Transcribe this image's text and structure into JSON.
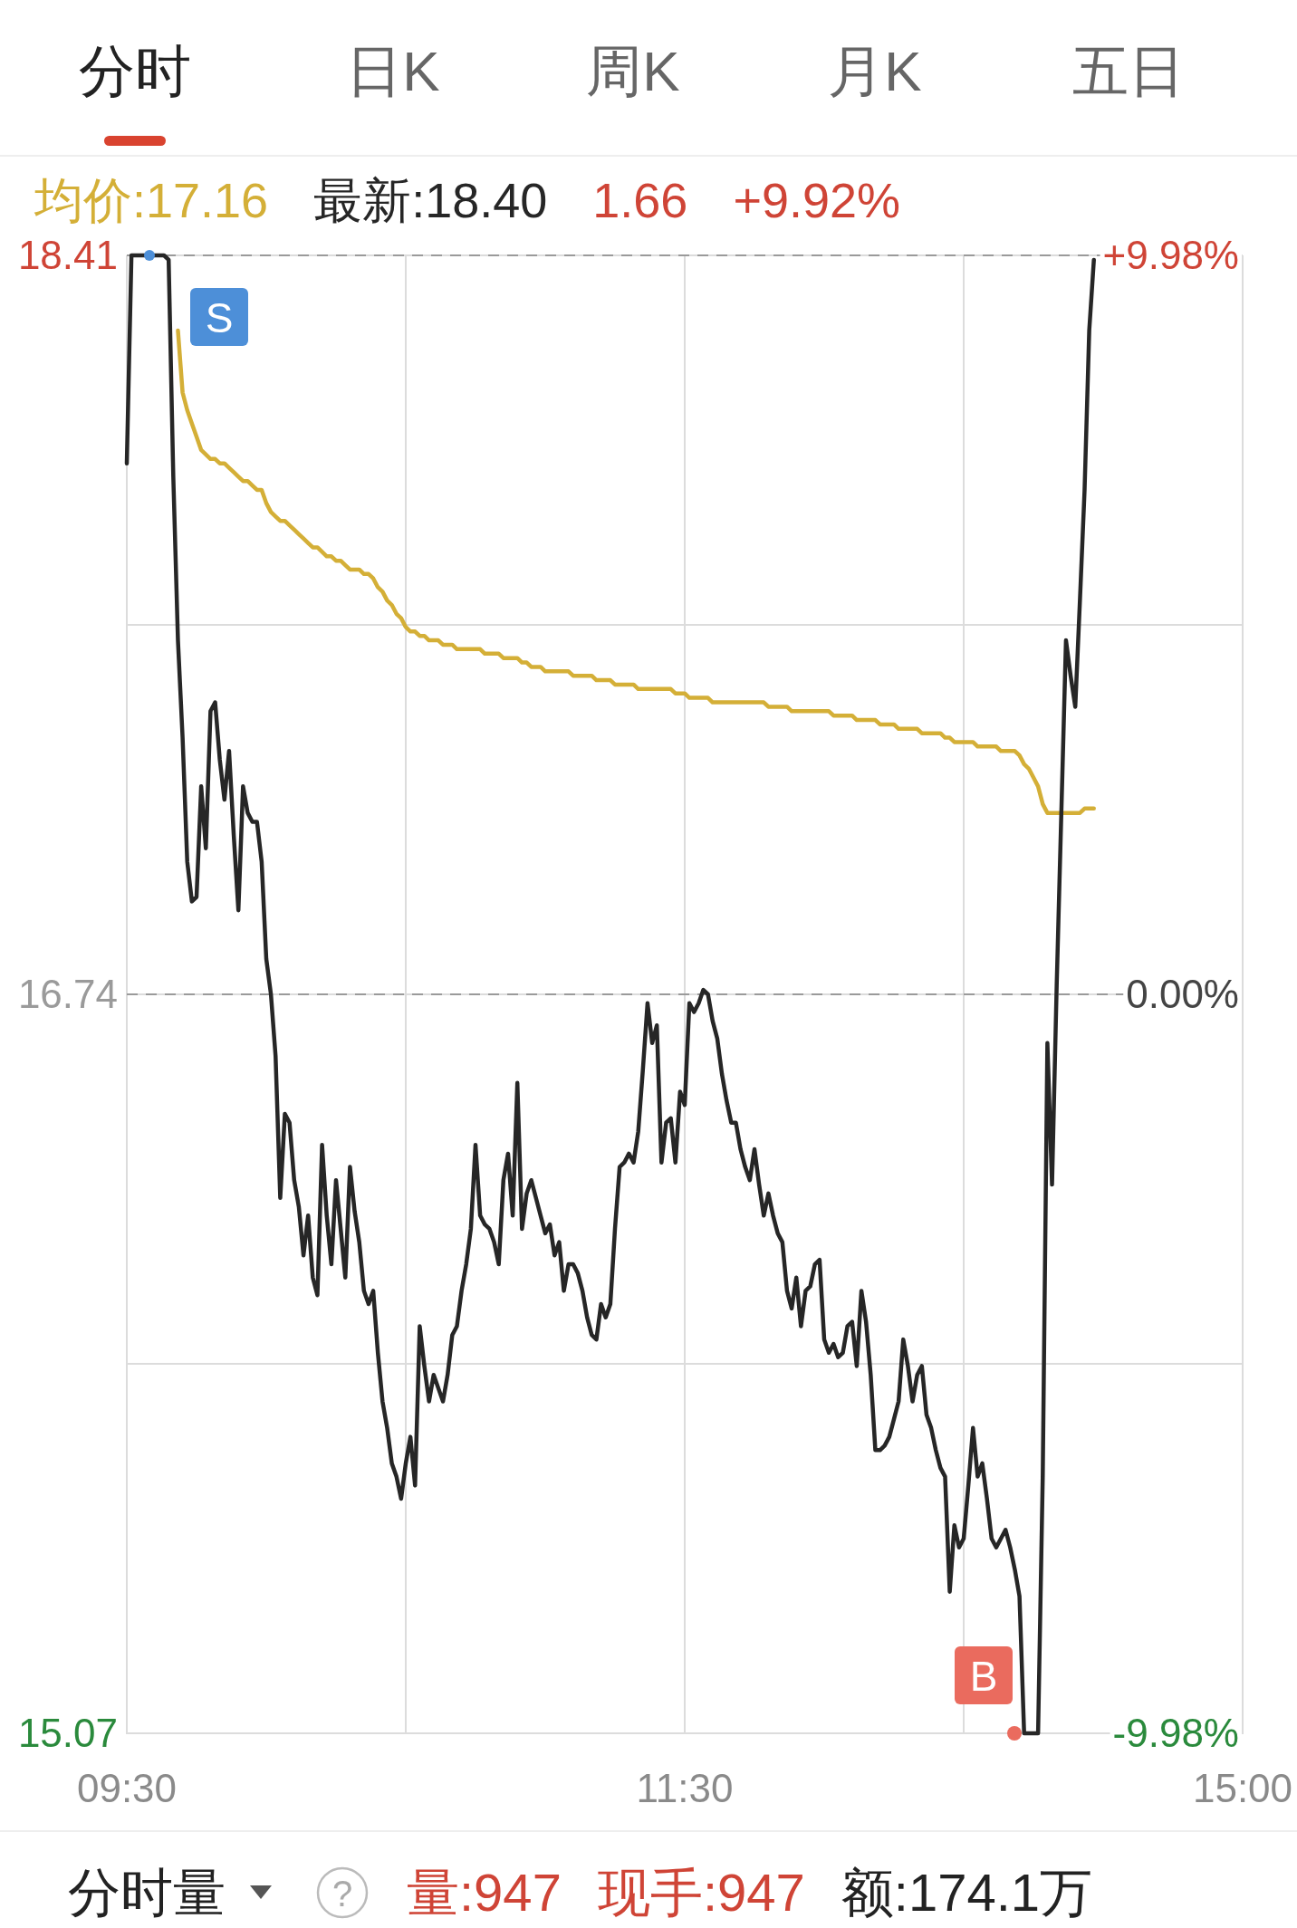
{
  "chart_data": {
    "type": "line",
    "categories": [
      "09:30",
      null,
      null,
      null,
      null,
      null,
      null,
      null,
      null,
      null,
      null,
      null,
      null,
      null,
      null,
      null,
      null,
      null,
      null,
      null,
      null,
      null,
      null,
      null,
      null,
      null,
      null,
      null,
      null,
      null,
      null,
      null,
      null,
      null,
      null,
      null,
      null,
      null,
      null,
      null,
      null,
      null,
      null,
      null,
      null,
      null,
      null,
      null,
      null,
      null,
      null,
      null,
      null,
      null,
      null,
      null,
      null,
      null,
      null,
      null,
      null,
      null,
      null,
      null,
      null,
      null,
      null,
      null,
      null,
      null,
      null,
      null,
      null,
      null,
      null,
      null,
      null,
      null,
      null,
      null,
      null,
      null,
      null,
      null,
      null,
      null,
      null,
      null,
      null,
      null,
      null,
      null,
      null,
      null,
      null,
      null,
      null,
      null,
      null,
      null,
      null,
      null,
      null,
      null,
      null,
      null,
      null,
      null,
      null,
      null,
      null,
      null,
      null,
      null,
      null,
      null,
      null,
      null,
      null,
      null,
      "11:30",
      null,
      null,
      null,
      null,
      null,
      null,
      null,
      null,
      null,
      null,
      null,
      null,
      null,
      null,
      null,
      null,
      null,
      null,
      null,
      null,
      null,
      null,
      null,
      null,
      null,
      null,
      null,
      null,
      null,
      null,
      null,
      null,
      null,
      null,
      null,
      null,
      null,
      null,
      null,
      null,
      null,
      null,
      null,
      null,
      null,
      null,
      null,
      null,
      null,
      null,
      null,
      null,
      null,
      null,
      null,
      null,
      null,
      null,
      null,
      null,
      null,
      null,
      null,
      null,
      null,
      null,
      null,
      null,
      null,
      null,
      null,
      null,
      null,
      null,
      null,
      null,
      null,
      null,
      null,
      null,
      null,
      null,
      null,
      null,
      null,
      null,
      null,
      null,
      null,
      null,
      null,
      null,
      null,
      null,
      null,
      null,
      null,
      null,
      null,
      null,
      null,
      null,
      null,
      null,
      null,
      null,
      null,
      null,
      null,
      null,
      null,
      null,
      null,
      null,
      null,
      null,
      null,
      null,
      null,
      "15:00"
    ],
    "ylim": [
      15.07,
      18.41
    ],
    "yticks": [
      15.07,
      {
        "value": 15.905,
        "label": null
      },
      16.74,
      {
        "value": 17.575,
        "label": null
      },
      18.41
    ],
    "y2lim": [
      -9.98,
      9.98
    ],
    "y2ticks": [
      {
        "value": -9.98,
        "label": "-9.98%"
      },
      {
        "value": 0,
        "label": "0.00%"
      },
      {
        "value": 9.98,
        "label": "+9.98%"
      }
    ],
    "grid": true,
    "legend": "top",
    "line_style": "solid",
    "ref_lines": [
      {
        "axis": "y",
        "value": 16.74,
        "line_style": "dashed"
      },
      {
        "axis": "y",
        "value": 18.41,
        "line_style": "dashed"
      }
    ],
    "series": [
      {
        "name": "均价:17.16",
        "color": "#d4af37",
        "values": [
          null,
          null,
          null,
          null,
          null,
          null,
          null,
          null,
          null,
          null,
          null,
          18.24,
          18.1,
          18.06,
          18.03,
          18.0,
          17.97,
          17.96,
          17.95,
          17.95,
          17.94,
          17.94,
          17.93,
          17.92,
          17.91,
          17.9,
          17.9,
          17.89,
          17.88,
          17.88,
          17.85,
          17.83,
          17.82,
          17.81,
          17.81,
          17.8,
          17.79,
          17.78,
          17.77,
          17.76,
          17.75,
          17.75,
          17.74,
          17.73,
          17.73,
          17.72,
          17.72,
          17.71,
          17.7,
          17.7,
          17.7,
          17.69,
          17.69,
          17.68,
          17.66,
          17.65,
          17.63,
          17.62,
          17.6,
          17.59,
          17.57,
          17.56,
          17.56,
          17.55,
          17.55,
          17.54,
          17.54,
          17.54,
          17.53,
          17.53,
          17.53,
          17.52,
          17.52,
          17.52,
          17.52,
          17.52,
          17.52,
          17.51,
          17.51,
          17.51,
          17.51,
          17.5,
          17.5,
          17.5,
          17.5,
          17.49,
          17.49,
          17.48,
          17.48,
          17.48,
          17.47,
          17.47,
          17.47,
          17.47,
          17.47,
          17.47,
          17.46,
          17.46,
          17.46,
          17.46,
          17.46,
          17.45,
          17.45,
          17.45,
          17.45,
          17.44,
          17.44,
          17.44,
          17.44,
          17.44,
          17.43,
          17.43,
          17.43,
          17.43,
          17.43,
          17.43,
          17.43,
          17.43,
          17.42,
          17.42,
          17.42,
          17.41,
          17.41,
          17.41,
          17.41,
          17.41,
          17.4,
          17.4,
          17.4,
          17.4,
          17.4,
          17.4,
          17.4,
          17.4,
          17.4,
          17.4,
          17.4,
          17.4,
          17.39,
          17.39,
          17.39,
          17.39,
          17.39,
          17.38,
          17.38,
          17.38,
          17.38,
          17.38,
          17.38,
          17.38,
          17.38,
          17.38,
          17.37,
          17.37,
          17.37,
          17.37,
          17.37,
          17.36,
          17.36,
          17.36,
          17.36,
          17.36,
          17.35,
          17.35,
          17.35,
          17.35,
          17.34,
          17.34,
          17.34,
          17.34,
          17.34,
          17.33,
          17.33,
          17.33,
          17.33,
          17.33,
          17.32,
          17.32,
          17.31,
          17.31,
          17.31,
          17.31,
          17.31,
          17.3,
          17.3,
          17.3,
          17.3,
          17.3,
          17.29,
          17.29,
          17.29,
          17.29,
          17.28,
          17.26,
          17.25,
          17.23,
          17.21,
          17.17,
          17.15,
          17.15,
          17.15,
          17.15,
          17.15,
          17.15,
          17.15,
          17.15,
          17.16,
          17.16,
          17.16,
          null,
          null,
          null,
          null,
          null,
          null,
          null,
          null,
          null,
          null,
          null,
          null,
          null,
          null,
          null,
          null,
          null,
          null,
          null,
          null,
          null,
          null,
          null,
          null,
          null,
          null,
          null,
          null,
          null,
          null,
          null,
          null
        ]
      },
      {
        "name": "最新:18.40",
        "color": "#262626",
        "values": [
          17.94,
          18.41,
          18.41,
          18.41,
          18.41,
          18.41,
          18.41,
          18.41,
          18.41,
          18.4,
          17.91,
          17.54,
          17.32,
          17.04,
          16.95,
          16.96,
          17.21,
          17.07,
          17.38,
          17.4,
          17.27,
          17.18,
          17.29,
          17.1,
          16.93,
          17.21,
          17.15,
          17.13,
          17.13,
          17.04,
          16.82,
          16.74,
          16.6,
          16.28,
          16.47,
          16.45,
          16.32,
          16.26,
          16.15,
          16.24,
          16.1,
          16.06,
          16.4,
          16.24,
          16.13,
          16.32,
          16.21,
          16.1,
          16.35,
          16.25,
          16.18,
          16.07,
          16.04,
          16.07,
          15.93,
          15.82,
          15.76,
          15.68,
          15.65,
          15.6,
          15.68,
          15.74,
          15.63,
          15.99,
          15.9,
          15.82,
          15.88,
          15.85,
          15.82,
          15.88,
          15.97,
          15.99,
          16.07,
          16.13,
          16.21,
          16.4,
          16.24,
          16.22,
          16.21,
          16.18,
          16.13,
          16.32,
          16.38,
          16.24,
          16.54,
          16.21,
          16.29,
          16.32,
          16.28,
          16.24,
          16.2,
          16.22,
          16.15,
          16.18,
          16.07,
          16.13,
          16.13,
          16.11,
          16.07,
          16.01,
          15.97,
          15.96,
          16.04,
          16.01,
          16.04,
          16.21,
          16.35,
          16.36,
          16.38,
          16.36,
          16.43,
          16.57,
          16.72,
          16.63,
          16.67,
          16.36,
          16.45,
          16.46,
          16.36,
          16.52,
          16.49,
          16.72,
          16.7,
          16.72,
          16.75,
          16.74,
          16.68,
          16.64,
          16.56,
          16.5,
          16.45,
          16.45,
          16.39,
          16.35,
          16.32,
          16.39,
          16.31,
          16.24,
          16.29,
          16.24,
          16.2,
          16.18,
          16.07,
          16.03,
          16.1,
          15.99,
          16.07,
          16.08,
          16.13,
          16.14,
          15.96,
          15.93,
          15.95,
          15.92,
          15.93,
          15.99,
          16.0,
          15.9,
          16.07,
          16.0,
          15.88,
          15.71,
          15.71,
          15.72,
          15.74,
          15.78,
          15.82,
          15.96,
          15.9,
          15.82,
          15.88,
          15.9,
          15.79,
          15.76,
          15.71,
          15.67,
          15.65,
          15.39,
          15.54,
          15.49,
          15.51,
          15.63,
          15.76,
          15.65,
          15.68,
          15.6,
          15.51,
          15.49,
          15.51,
          15.53,
          15.49,
          15.44,
          15.38,
          15.07,
          15.07,
          15.07,
          15.07,
          15.65,
          16.63,
          16.31,
          16.76,
          17.15,
          17.54,
          17.46,
          17.39,
          17.63,
          17.88,
          18.24,
          18.4,
          null,
          null,
          null,
          null,
          null,
          null,
          null,
          null,
          null,
          null,
          null,
          null,
          null,
          null,
          null,
          null,
          null,
          null,
          null,
          null,
          null,
          null,
          null,
          null,
          null,
          null,
          null,
          null,
          null,
          null,
          null,
          null
        ]
      }
    ],
    "annotations": [
      "分时",
      "日K",
      "周K",
      "月K",
      "五日",
      "1.66",
      "+9.92%",
      "分时量",
      "?",
      "量:947",
      "现手:947",
      "额:174.1万",
      "S",
      "B"
    ]
  }
}
